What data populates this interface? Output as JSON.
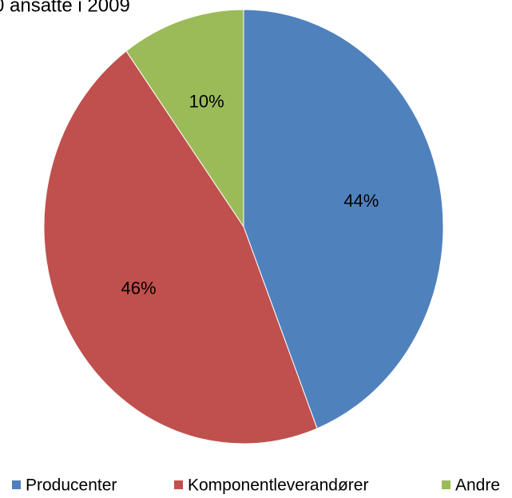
{
  "chart_data": {
    "type": "pie",
    "title": "0 ansatte i 2009",
    "categories": [
      "Producenter",
      "Komponentleverandører",
      "Andre"
    ],
    "values": [
      44,
      46,
      10
    ],
    "value_labels": [
      "44%",
      "46%",
      "10%"
    ],
    "colors": [
      "#4f81bd",
      "#c0504d",
      "#9bbb59"
    ],
    "legend": "bottom"
  }
}
